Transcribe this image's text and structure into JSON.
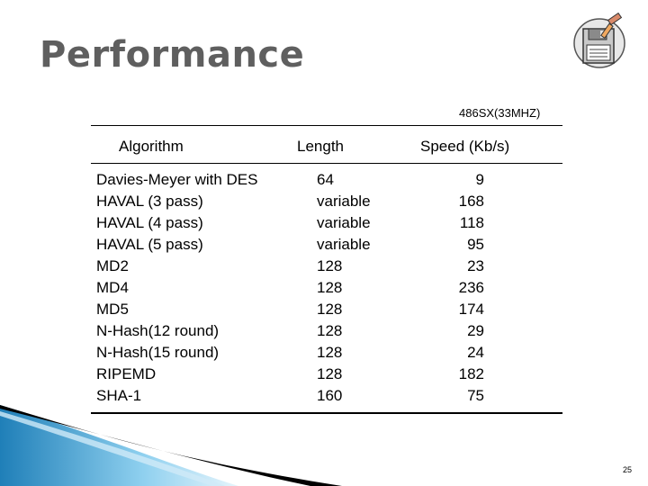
{
  "slide": {
    "title": "Performance",
    "subtitle": "486SX(33MHZ)",
    "page_number": "25"
  },
  "table": {
    "headers": {
      "algorithm": "Algorithm",
      "length": "Length",
      "speed": "Speed (Kb/s)"
    },
    "rows": [
      {
        "algorithm": "Davies-Meyer with DES",
        "length": "64",
        "speed": "9"
      },
      {
        "algorithm": "HAVAL (3 pass)",
        "length": "variable",
        "speed": "168"
      },
      {
        "algorithm": "HAVAL (4 pass)",
        "length": "variable",
        "speed": "118"
      },
      {
        "algorithm": "HAVAL (5 pass)",
        "length": "variable",
        "speed": "95"
      },
      {
        "algorithm": "MD2",
        "length": "128",
        "speed": "23"
      },
      {
        "algorithm": "MD4",
        "length": "128",
        "speed": "236"
      },
      {
        "algorithm": "MD5",
        "length": "128",
        "speed": "174"
      },
      {
        "algorithm": "N-Hash(12 round)",
        "length": "128",
        "speed": "29"
      },
      {
        "algorithm": "N-Hash(15 round)",
        "length": "128",
        "speed": "24"
      },
      {
        "algorithm": "RIPEMD",
        "length": "128",
        "speed": "182"
      },
      {
        "algorithm": "SHA-1",
        "length": "160",
        "speed": "75"
      }
    ]
  },
  "decor": {
    "clipart_icon": "floppy-disk-computer-icon",
    "swoosh_colors": [
      "#1f7fb8",
      "#8fd0ef",
      "#000000"
    ]
  }
}
